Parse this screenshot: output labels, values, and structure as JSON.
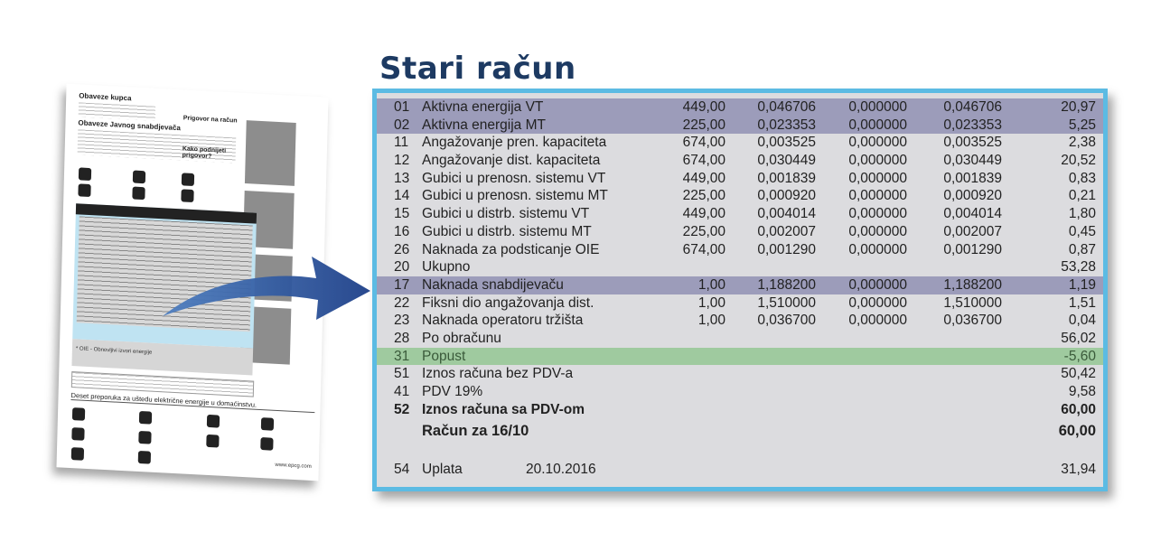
{
  "title": "Stari račun",
  "thumbnail": {
    "heading1": "Obaveze kupca",
    "heading2": "Obaveze Javnog snabdjevača",
    "heading3": "Prigovor na račun",
    "heading4": "Kako podnijeti prigovor?",
    "heading5": "Deset preporuka za uštedu električne energije u domaćinstvu.",
    "footnote": "* OIE - Obnovljivi izvori energije",
    "website": "www.epcg.com"
  },
  "colors": {
    "title": "#1d3a62",
    "border": "#5cbbe3",
    "highlight_purple": "#9c9cba",
    "highlight_green": "#9fca9f",
    "background": "#dcdcdf"
  },
  "rows": [
    {
      "code": "01",
      "label": "Aktivna energija VT",
      "qty": "449,00",
      "c1": "0,046706",
      "c2": "0,000000",
      "c3": "0,046706",
      "total": "20,97",
      "style": "purple"
    },
    {
      "code": "02",
      "label": "Aktivna energija MT",
      "qty": "225,00",
      "c1": "0,023353",
      "c2": "0,000000",
      "c3": "0,023353",
      "total": "5,25",
      "style": "purple"
    },
    {
      "code": "11",
      "label": "Angažovanje pren. kapaciteta",
      "qty": "674,00",
      "c1": "0,003525",
      "c2": "0,000000",
      "c3": "0,003525",
      "total": "2,38"
    },
    {
      "code": "12",
      "label": "Angažovanje dist. kapaciteta",
      "qty": "674,00",
      "c1": "0,030449",
      "c2": "0,000000",
      "c3": "0,030449",
      "total": "20,52"
    },
    {
      "code": "13",
      "label": "Gubici u prenosn. sistemu VT",
      "qty": "449,00",
      "c1": "0,001839",
      "c2": "0,000000",
      "c3": "0,001839",
      "total": "0,83"
    },
    {
      "code": "14",
      "label": "Gubici u prenosn. sistemu MT",
      "qty": "225,00",
      "c1": "0,000920",
      "c2": "0,000000",
      "c3": "0,000920",
      "total": "0,21"
    },
    {
      "code": "15",
      "label": "Gubici u distrb. sistemu VT",
      "qty": "449,00",
      "c1": "0,004014",
      "c2": "0,000000",
      "c3": "0,004014",
      "total": "1,80"
    },
    {
      "code": "16",
      "label": "Gubici u distrb. sistemu MT",
      "qty": "225,00",
      "c1": "0,002007",
      "c2": "0,000000",
      "c3": "0,002007",
      "total": "0,45"
    },
    {
      "code": "26",
      "label": "Naknada za podsticanje OIE",
      "qty": "674,00",
      "c1": "0,001290",
      "c2": "0,000000",
      "c3": "0,001290",
      "total": "0,87"
    },
    {
      "code": "20",
      "label": "Ukupno",
      "total": "53,28"
    },
    {
      "code": "17",
      "label": "Naknada snabdijevaču",
      "qty": "1,00",
      "c1": "1,188200",
      "c2": "0,000000",
      "c3": "1,188200",
      "total": "1,19",
      "style": "purple"
    },
    {
      "code": "22",
      "label": "Fiksni dio angažovanja dist.",
      "qty": "1,00",
      "c1": "1,510000",
      "c2": "0,000000",
      "c3": "1,510000",
      "total": "1,51"
    },
    {
      "code": "23",
      "label": "Naknada operatoru tržišta",
      "qty": "1,00",
      "c1": "0,036700",
      "c2": "0,000000",
      "c3": "0,036700",
      "total": "0,04"
    },
    {
      "code": "28",
      "label": "Po obračunu",
      "total": "56,02"
    },
    {
      "code": "31",
      "label": "Popust",
      "total": "-5,60",
      "style": "green"
    },
    {
      "code": "51",
      "label": "Iznos računa bez PDV-a",
      "total": "50,42"
    },
    {
      "code": "41",
      "label": "PDV 19%",
      "total": "9,58"
    },
    {
      "code": "52",
      "label": "Iznos računa sa PDV-om",
      "total": "60,00",
      "style": "bold"
    },
    {
      "code": "",
      "label": "Račun za 16/10",
      "total": "60,00",
      "style": "big"
    },
    {
      "style": "gap"
    },
    {
      "code": "54",
      "label": "Uplata",
      "date": "20.10.2016",
      "total": "31,94"
    }
  ]
}
